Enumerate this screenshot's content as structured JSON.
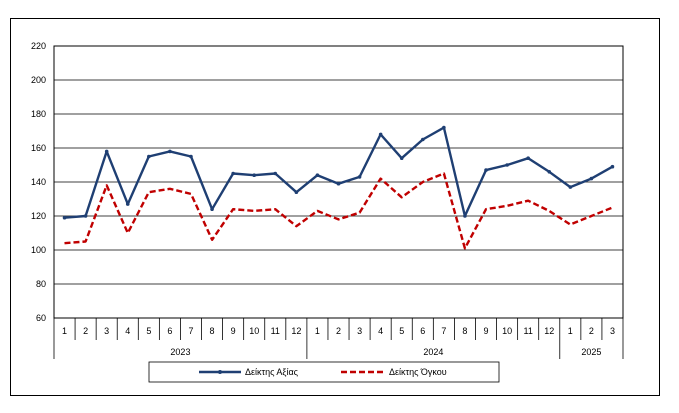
{
  "chart_data": {
    "type": "line",
    "title": "",
    "xlabel": "",
    "ylabel": "",
    "ylim": [
      60,
      220
    ],
    "yticks": [
      60,
      80,
      100,
      120,
      140,
      160,
      180,
      200,
      220
    ],
    "grid": true,
    "months": [
      "1",
      "2",
      "3",
      "4",
      "5",
      "6",
      "7",
      "8",
      "9",
      "10",
      "11",
      "12",
      "1",
      "2",
      "3",
      "4",
      "5",
      "6",
      "7",
      "8",
      "9",
      "10",
      "11",
      "12",
      "1",
      "2",
      "3"
    ],
    "years": [
      {
        "label": "2023",
        "start": 0,
        "count": 12
      },
      {
        "label": "2024",
        "start": 12,
        "count": 12
      },
      {
        "label": "2025",
        "start": 24,
        "count": 3
      }
    ],
    "series": [
      {
        "name": "Δείκτης Αξίας",
        "color": "#1f3f73",
        "style": "solid",
        "values": [
          119,
          120,
          158,
          127,
          155,
          158,
          155,
          124,
          145,
          144,
          145,
          134,
          144,
          139,
          143,
          168,
          154,
          165,
          172,
          120,
          147,
          150,
          154,
          146,
          137,
          142,
          149
        ]
      },
      {
        "name": "Δείκτης Όγκου",
        "color": "#c00000",
        "style": "dashed",
        "values": [
          104,
          105,
          138,
          110,
          134,
          136,
          133,
          106,
          124,
          123,
          124,
          114,
          123,
          118,
          122,
          142,
          131,
          140,
          145,
          101,
          124,
          126,
          129,
          123,
          115,
          120,
          125
        ]
      }
    ],
    "legend_position": "bottom"
  }
}
